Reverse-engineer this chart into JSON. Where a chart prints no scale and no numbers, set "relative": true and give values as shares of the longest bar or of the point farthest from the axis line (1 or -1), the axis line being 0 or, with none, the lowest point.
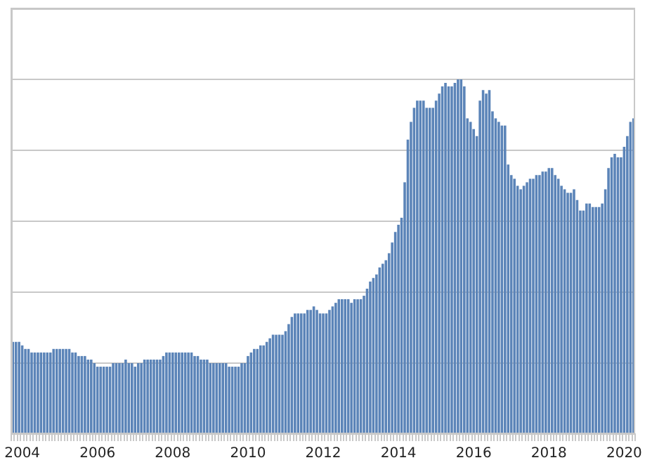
{
  "chart_data": {
    "type": "bar",
    "relative": true,
    "color": "#5b84b8",
    "grid": "y",
    "legend": false,
    "categories": [
      null,
      null,
      null,
      "2004",
      null,
      null,
      null,
      null,
      null,
      null,
      null,
      null,
      null,
      null,
      null,
      null,
      null,
      null,
      null,
      null,
      null,
      null,
      null,
      null,
      null,
      null,
      null,
      "2006",
      null,
      null,
      null,
      null,
      null,
      null,
      null,
      null,
      null,
      null,
      null,
      null,
      null,
      null,
      null,
      null,
      null,
      null,
      null,
      null,
      null,
      null,
      null,
      "2008",
      null,
      null,
      null,
      null,
      null,
      null,
      null,
      null,
      null,
      null,
      null,
      null,
      null,
      null,
      null,
      null,
      null,
      null,
      null,
      null,
      null,
      null,
      null,
      "2010",
      null,
      null,
      null,
      null,
      null,
      null,
      null,
      null,
      null,
      null,
      null,
      null,
      null,
      null,
      null,
      null,
      null,
      null,
      null,
      null,
      null,
      null,
      null,
      "2012",
      null,
      null,
      null,
      null,
      null,
      null,
      null,
      null,
      null,
      null,
      null,
      null,
      null,
      null,
      null,
      null,
      null,
      null,
      null,
      null,
      null,
      null,
      null,
      "2014",
      null,
      null,
      null,
      null,
      null,
      null,
      null,
      null,
      null,
      null,
      null,
      null,
      null,
      null,
      null,
      null,
      null,
      null,
      null,
      null,
      null,
      null,
      null,
      "2016",
      null,
      null,
      null,
      null,
      null,
      null,
      null,
      null,
      null,
      null,
      null,
      null,
      null,
      null,
      null,
      null,
      null,
      null,
      null,
      null,
      null,
      null,
      null,
      "2018",
      null,
      null,
      null,
      null,
      null,
      null,
      null,
      null,
      null,
      null,
      null,
      null,
      null,
      null,
      null,
      null,
      null,
      null,
      null,
      null,
      null,
      null,
      null,
      "2020",
      null,
      null,
      null
    ],
    "values": [
      0.26,
      0.26,
      0.26,
      0.25,
      0.24,
      0.24,
      0.23,
      0.23,
      0.23,
      0.23,
      0.23,
      0.23,
      0.23,
      0.24,
      0.24,
      0.24,
      0.24,
      0.24,
      0.24,
      0.23,
      0.23,
      0.22,
      0.22,
      0.22,
      0.21,
      0.21,
      0.2,
      0.19,
      0.19,
      0.19,
      0.19,
      0.19,
      0.2,
      0.2,
      0.2,
      0.2,
      0.21,
      0.2,
      0.2,
      0.19,
      0.2,
      0.2,
      0.21,
      0.21,
      0.21,
      0.21,
      0.21,
      0.21,
      0.22,
      0.23,
      0.23,
      0.23,
      0.23,
      0.23,
      0.23,
      0.23,
      0.23,
      0.23,
      0.22,
      0.22,
      0.21,
      0.21,
      0.21,
      0.2,
      0.2,
      0.2,
      0.2,
      0.2,
      0.2,
      0.19,
      0.19,
      0.19,
      0.19,
      0.2,
      0.2,
      0.22,
      0.23,
      0.24,
      0.24,
      0.25,
      0.25,
      0.26,
      0.27,
      0.28,
      0.28,
      0.28,
      0.28,
      0.29,
      0.31,
      0.33,
      0.34,
      0.34,
      0.34,
      0.34,
      0.35,
      0.35,
      0.36,
      0.35,
      0.34,
      0.34,
      0.34,
      0.35,
      0.36,
      0.37,
      0.38,
      0.38,
      0.38,
      0.38,
      0.37,
      0.38,
      0.38,
      0.38,
      0.39,
      0.41,
      0.43,
      0.44,
      0.45,
      0.47,
      0.48,
      0.49,
      0.51,
      0.54,
      0.57,
      0.59,
      0.61,
      0.71,
      0.83,
      0.88,
      0.92,
      0.94,
      0.94,
      0.94,
      0.92,
      0.92,
      0.92,
      0.94,
      0.96,
      0.98,
      0.99,
      0.98,
      0.98,
      0.99,
      1.0,
      1.0,
      0.98,
      0.89,
      0.88,
      0.86,
      0.84,
      0.94,
      0.97,
      0.96,
      0.97,
      0.91,
      0.89,
      0.88,
      0.87,
      0.87,
      0.76,
      0.73,
      0.72,
      0.7,
      0.69,
      0.7,
      0.71,
      0.72,
      0.72,
      0.73,
      0.73,
      0.74,
      0.74,
      0.75,
      0.75,
      0.73,
      0.72,
      0.7,
      0.69,
      0.68,
      0.68,
      0.69,
      0.66,
      0.63,
      0.63,
      0.65,
      0.65,
      0.64,
      0.64,
      0.64,
      0.65,
      0.69,
      0.75,
      0.78,
      0.79,
      0.78,
      0.78,
      0.81,
      0.84,
      0.88,
      0.89
    ]
  }
}
